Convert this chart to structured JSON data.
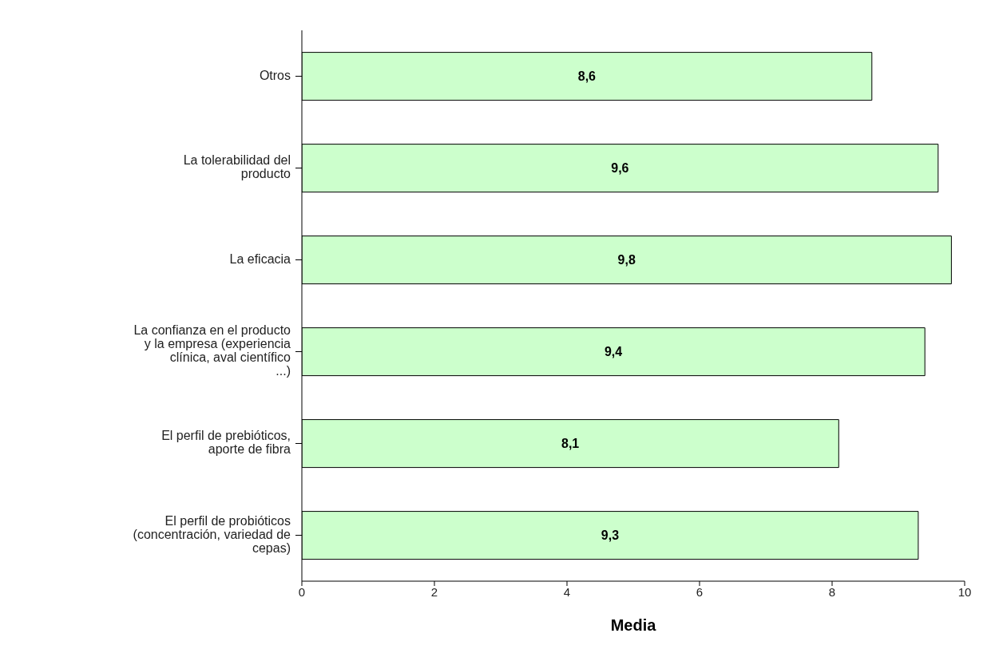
{
  "chart_data": {
    "type": "bar",
    "orientation": "horizontal",
    "xlabel": "Media",
    "categories": [
      "Otros",
      "La tolerabilidad del producto",
      "La eficacia",
      "La confianza en el producto y la empresa (experiencia clínica, aval científico ...)",
      "El perfil de prebióticos, aporte de fibra",
      "El perfil de probióticos (concentración, variedad de cepas)"
    ],
    "values": [
      8.6,
      9.6,
      9.8,
      9.4,
      8.1,
      9.3
    ],
    "value_labels": [
      "8,6",
      "9,6",
      "9,8",
      "9,4",
      "8,1",
      "9,3"
    ],
    "color": "#ccffcc",
    "xlim": [
      0,
      10
    ],
    "xticks": [
      0,
      2,
      4,
      6,
      8,
      10
    ]
  }
}
